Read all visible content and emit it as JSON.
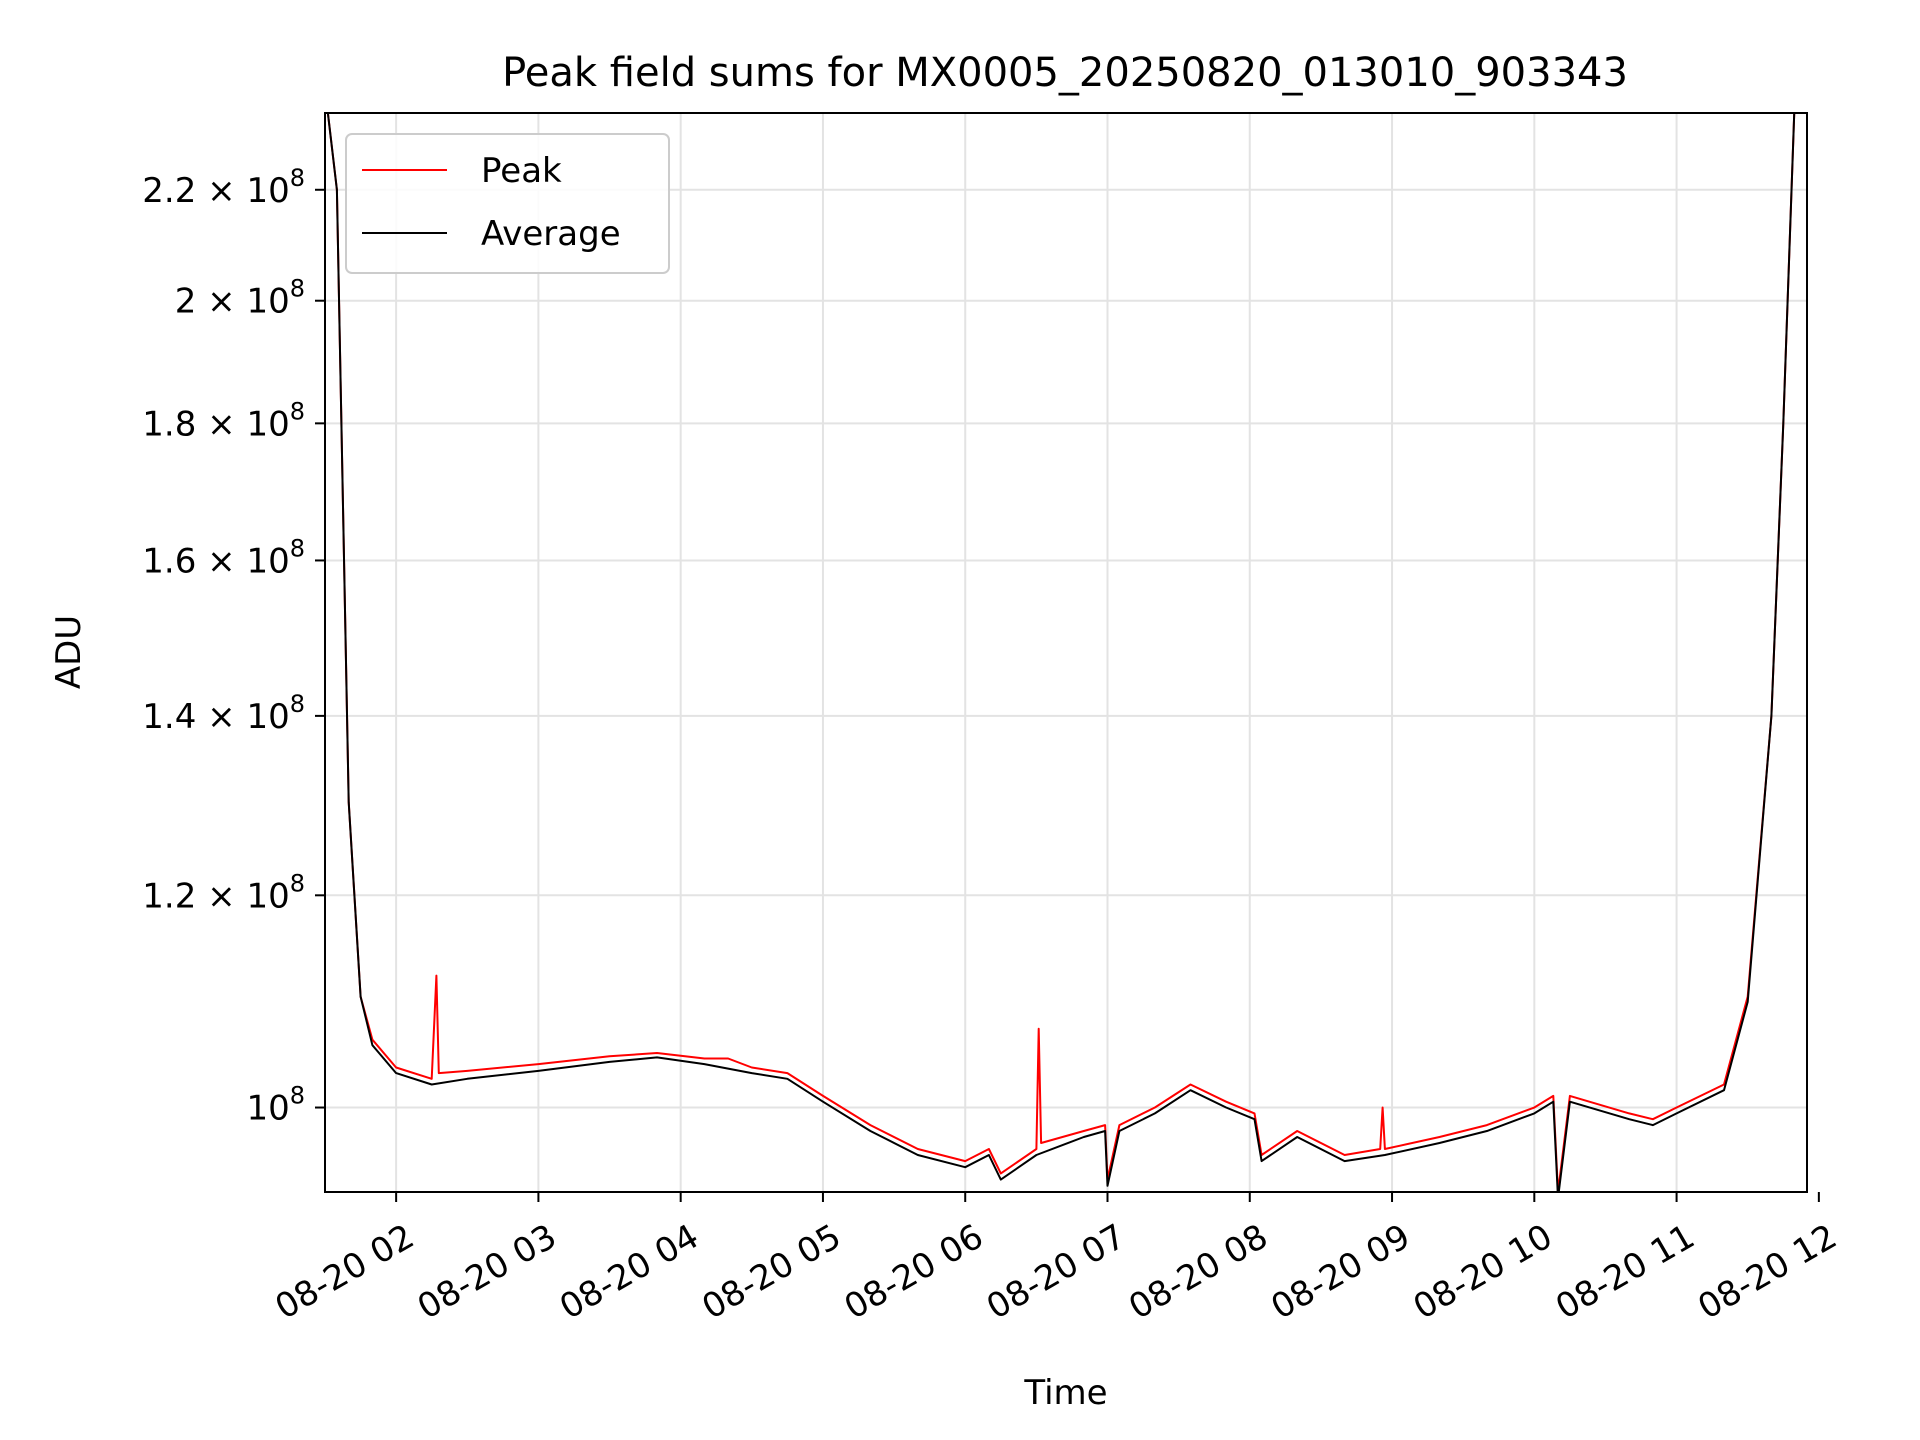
{
  "chart_data": {
    "type": "line",
    "title": "Peak field sums for MX0005_20250820_013010_903343",
    "xlabel": "Time",
    "ylabel": "ADU",
    "y_scale": "log",
    "xlim": [
      "2025-08-20 01:30",
      "2025-08-20 11:55"
    ],
    "ylim": [
      93000000.0,
      235000000.0
    ],
    "grid": true,
    "legend_position": "top-left",
    "x_ticks": [
      {
        "value": "2025-08-20 02:00",
        "label": "08-20 02"
      },
      {
        "value": "2025-08-20 03:00",
        "label": "08-20 03"
      },
      {
        "value": "2025-08-20 04:00",
        "label": "08-20 04"
      },
      {
        "value": "2025-08-20 05:00",
        "label": "08-20 05"
      },
      {
        "value": "2025-08-20 06:00",
        "label": "08-20 06"
      },
      {
        "value": "2025-08-20 07:00",
        "label": "08-20 07"
      },
      {
        "value": "2025-08-20 08:00",
        "label": "08-20 08"
      },
      {
        "value": "2025-08-20 09:00",
        "label": "08-20 09"
      },
      {
        "value": "2025-08-20 10:00",
        "label": "08-20 10"
      },
      {
        "value": "2025-08-20 11:00",
        "label": "08-20 11"
      },
      {
        "value": "2025-08-20 12:00",
        "label": "08-20 12"
      }
    ],
    "y_ticks": [
      {
        "value": 100000000.0,
        "mant": "",
        "exp": "8"
      },
      {
        "value": 120000000.0,
        "mant": "1.2",
        "exp": "8"
      },
      {
        "value": 140000000.0,
        "mant": "1.4",
        "exp": "8"
      },
      {
        "value": 160000000.0,
        "mant": "1.6",
        "exp": "8"
      },
      {
        "value": 180000000.0,
        "mant": "1.8",
        "exp": "8"
      },
      {
        "value": 200000000.0,
        "mant": "2",
        "exp": "8"
      },
      {
        "value": 220000000.0,
        "mant": "2.2",
        "exp": "8"
      }
    ],
    "series": [
      {
        "name": "Peak",
        "color": "#ff0000",
        "points": [
          [
            "2025-08-20 01:30",
            240000000.0
          ],
          [
            "2025-08-20 01:35",
            220000000.0
          ],
          [
            "2025-08-20 01:40",
            130000000.0
          ],
          [
            "2025-08-20 01:45",
            110000000.0
          ],
          [
            "2025-08-20 01:50",
            106000000.0
          ],
          [
            "2025-08-20 02:00",
            103500000.0
          ],
          [
            "2025-08-20 02:15",
            102500000.0
          ],
          [
            "2025-08-20 02:17",
            112000000.0
          ],
          [
            "2025-08-20 02:18",
            103000000.0
          ],
          [
            "2025-08-20 02:30",
            103200000.0
          ],
          [
            "2025-08-20 03:00",
            103800000.0
          ],
          [
            "2025-08-20 03:30",
            104500000.0
          ],
          [
            "2025-08-20 03:50",
            104800000.0
          ],
          [
            "2025-08-20 04:10",
            104300000.0
          ],
          [
            "2025-08-20 04:20",
            104300000.0
          ],
          [
            "2025-08-20 04:30",
            103500000.0
          ],
          [
            "2025-08-20 04:45",
            103000000.0
          ],
          [
            "2025-08-20 05:00",
            101000000.0
          ],
          [
            "2025-08-20 05:20",
            98500000.0
          ],
          [
            "2025-08-20 05:40",
            96500000.0
          ],
          [
            "2025-08-20 06:00",
            95500000.0
          ],
          [
            "2025-08-20 06:10",
            96500000.0
          ],
          [
            "2025-08-20 06:15",
            94500000.0
          ],
          [
            "2025-08-20 06:30",
            96500000.0
          ],
          [
            "2025-08-20 06:31",
            107000000.0
          ],
          [
            "2025-08-20 06:32",
            97000000.0
          ],
          [
            "2025-08-20 06:50",
            98000000.0
          ],
          [
            "2025-08-20 06:59",
            98500000.0
          ],
          [
            "2025-08-20 07:00",
            94000000.0
          ],
          [
            "2025-08-20 07:05",
            98500000.0
          ],
          [
            "2025-08-20 07:20",
            100000000.0
          ],
          [
            "2025-08-20 07:35",
            102000000.0
          ],
          [
            "2025-08-20 07:50",
            100500000.0
          ],
          [
            "2025-08-20 08:02",
            99500000.0
          ],
          [
            "2025-08-20 08:05",
            96000000.0
          ],
          [
            "2025-08-20 08:20",
            98000000.0
          ],
          [
            "2025-08-20 08:40",
            96000000.0
          ],
          [
            "2025-08-20 08:55",
            96500000.0
          ],
          [
            "2025-08-20 08:56",
            100000000.0
          ],
          [
            "2025-08-20 08:57",
            96500000.0
          ],
          [
            "2025-08-20 09:20",
            97500000.0
          ],
          [
            "2025-08-20 09:40",
            98500000.0
          ],
          [
            "2025-08-20 10:00",
            100000000.0
          ],
          [
            "2025-08-20 10:08",
            101000000.0
          ],
          [
            "2025-08-20 10:10",
            93000000.0
          ],
          [
            "2025-08-20 10:15",
            101000000.0
          ],
          [
            "2025-08-20 10:40",
            99500000.0
          ],
          [
            "2025-08-20 10:50",
            99000000.0
          ],
          [
            "2025-08-20 11:00",
            100000000.0
          ],
          [
            "2025-08-20 11:20",
            102000000.0
          ],
          [
            "2025-08-20 11:30",
            110000000.0
          ],
          [
            "2025-08-20 11:40",
            140000000.0
          ],
          [
            "2025-08-20 11:45",
            180000000.0
          ],
          [
            "2025-08-20 11:50",
            240000000.0
          ]
        ]
      },
      {
        "name": "Average",
        "color": "#000000",
        "points": [
          [
            "2025-08-20 01:30",
            240000000.0
          ],
          [
            "2025-08-20 01:35",
            220000000.0
          ],
          [
            "2025-08-20 01:40",
            130000000.0
          ],
          [
            "2025-08-20 01:45",
            110000000.0
          ],
          [
            "2025-08-20 01:50",
            105500000.0
          ],
          [
            "2025-08-20 02:00",
            103000000.0
          ],
          [
            "2025-08-20 02:15",
            102000000.0
          ],
          [
            "2025-08-20 02:30",
            102500000.0
          ],
          [
            "2025-08-20 03:00",
            103200000.0
          ],
          [
            "2025-08-20 03:30",
            104000000.0
          ],
          [
            "2025-08-20 03:50",
            104400000.0
          ],
          [
            "2025-08-20 04:10",
            103800000.0
          ],
          [
            "2025-08-20 04:30",
            103000000.0
          ],
          [
            "2025-08-20 04:45",
            102500000.0
          ],
          [
            "2025-08-20 05:00",
            100500000.0
          ],
          [
            "2025-08-20 05:20",
            98000000.0
          ],
          [
            "2025-08-20 05:40",
            96000000.0
          ],
          [
            "2025-08-20 06:00",
            95000000.0
          ],
          [
            "2025-08-20 06:10",
            96000000.0
          ],
          [
            "2025-08-20 06:15",
            94000000.0
          ],
          [
            "2025-08-20 06:30",
            96000000.0
          ],
          [
            "2025-08-20 06:50",
            97500000.0
          ],
          [
            "2025-08-20 06:59",
            98000000.0
          ],
          [
            "2025-08-20 07:00",
            93500000.0
          ],
          [
            "2025-08-20 07:05",
            98000000.0
          ],
          [
            "2025-08-20 07:20",
            99500000.0
          ],
          [
            "2025-08-20 07:35",
            101500000.0
          ],
          [
            "2025-08-20 07:50",
            100000000.0
          ],
          [
            "2025-08-20 08:02",
            99000000.0
          ],
          [
            "2025-08-20 08:05",
            95500000.0
          ],
          [
            "2025-08-20 08:20",
            97500000.0
          ],
          [
            "2025-08-20 08:40",
            95500000.0
          ],
          [
            "2025-08-20 08:57",
            96000000.0
          ],
          [
            "2025-08-20 09:20",
            97000000.0
          ],
          [
            "2025-08-20 09:40",
            98000000.0
          ],
          [
            "2025-08-20 10:00",
            99500000.0
          ],
          [
            "2025-08-20 10:08",
            100500000.0
          ],
          [
            "2025-08-20 10:10",
            92500000.0
          ],
          [
            "2025-08-20 10:15",
            100500000.0
          ],
          [
            "2025-08-20 10:40",
            99000000.0
          ],
          [
            "2025-08-20 10:50",
            98500000.0
          ],
          [
            "2025-08-20 11:00",
            99500000.0
          ],
          [
            "2025-08-20 11:20",
            101500000.0
          ],
          [
            "2025-08-20 11:30",
            109500000.0
          ],
          [
            "2025-08-20 11:40",
            140000000.0
          ],
          [
            "2025-08-20 11:45",
            180000000.0
          ],
          [
            "2025-08-20 11:50",
            240000000.0
          ]
        ]
      }
    ]
  }
}
